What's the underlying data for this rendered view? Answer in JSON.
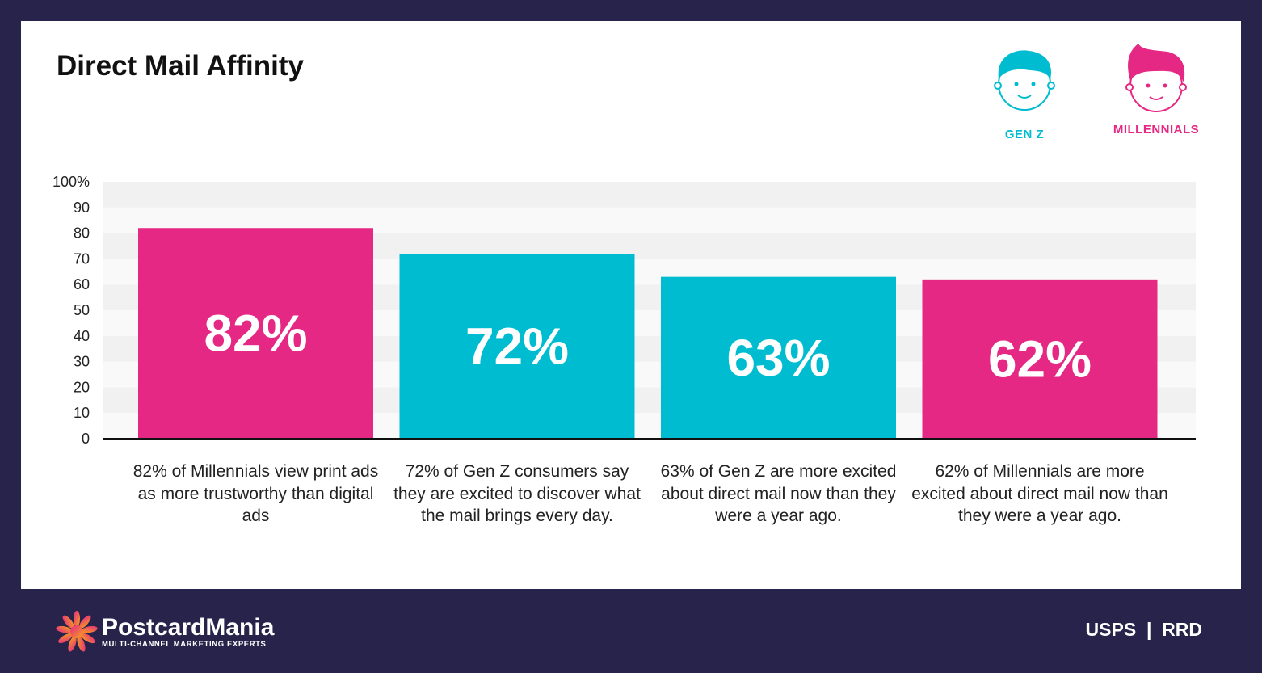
{
  "title": "Direct Mail Affinity",
  "legend": [
    {
      "label": "GEN Z",
      "color": "#00bcd0",
      "icon": "boy-face-icon"
    },
    {
      "label": "MILLENNIALS",
      "color": "#e52883",
      "icon": "boy-face-quiff-icon"
    }
  ],
  "chart_data": {
    "type": "bar",
    "title": "Direct Mail Affinity",
    "categories": [
      "82% of Millennials view print ads as more trustworthy than digital ads",
      "72% of Gen Z consumers say they are excited to discover what the mail brings every day.",
      "63% of Gen Z are more excited about direct mail now than they were a year ago.",
      "62% of Millennials are more excited about direct mail now than they were a year ago."
    ],
    "values": [
      82,
      72,
      63,
      62
    ],
    "data_labels": [
      "82%",
      "72%",
      "63%",
      "62%"
    ],
    "series_of_bar": [
      "MILLENNIALS",
      "GEN Z",
      "GEN Z",
      "MILLENNIALS"
    ],
    "bar_colors": [
      "#e52883",
      "#00bcd0",
      "#00bcd0",
      "#e52883"
    ],
    "ylim": [
      0,
      100
    ],
    "yticks": [
      "0",
      "10",
      "20",
      "30",
      "40",
      "50",
      "60",
      "70",
      "80",
      "90",
      "100%"
    ],
    "grid": "alternating horizontal bands",
    "legend_position": "top-right"
  },
  "footer": {
    "logo_name": "PostcardMania",
    "logo_tagline": "MULTI-CHANNEL MARKETING EXPERTS",
    "partners": "USPS  |  RRD"
  },
  "colors": {
    "background": "#27234a",
    "pink": "#e52883",
    "teal": "#00bcd0"
  }
}
